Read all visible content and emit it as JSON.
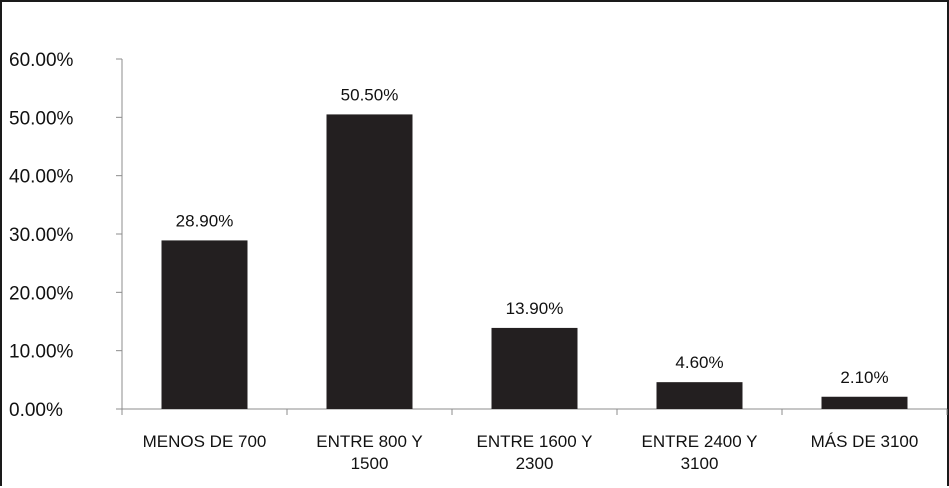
{
  "chart_data": {
    "type": "bar",
    "categories": [
      [
        "MENOS DE  700"
      ],
      [
        "ENTRE 800 Y",
        "1500"
      ],
      [
        "ENTRE 1600 Y",
        "2300"
      ],
      [
        "ENTRE 2400 Y",
        "3100"
      ],
      [
        "MÁS DE 3100"
      ]
    ],
    "values": [
      28.9,
      50.5,
      13.9,
      4.6,
      2.1
    ],
    "data_labels": [
      "28.90%",
      "50.50%",
      "13.90%",
      "4.60%",
      "2.10%"
    ],
    "yticks": [
      "0.00%",
      "10.00%",
      "20.00%",
      "30.00%",
      "40.00%",
      "50.00%",
      "60.00%"
    ],
    "ylim": [
      0,
      60
    ],
    "title": "",
    "xlabel": "",
    "ylabel": "",
    "grid": false,
    "legend": "none",
    "colors": {
      "bar": "#231f20",
      "axis": "#8c8c8c",
      "text": "#111111"
    }
  }
}
